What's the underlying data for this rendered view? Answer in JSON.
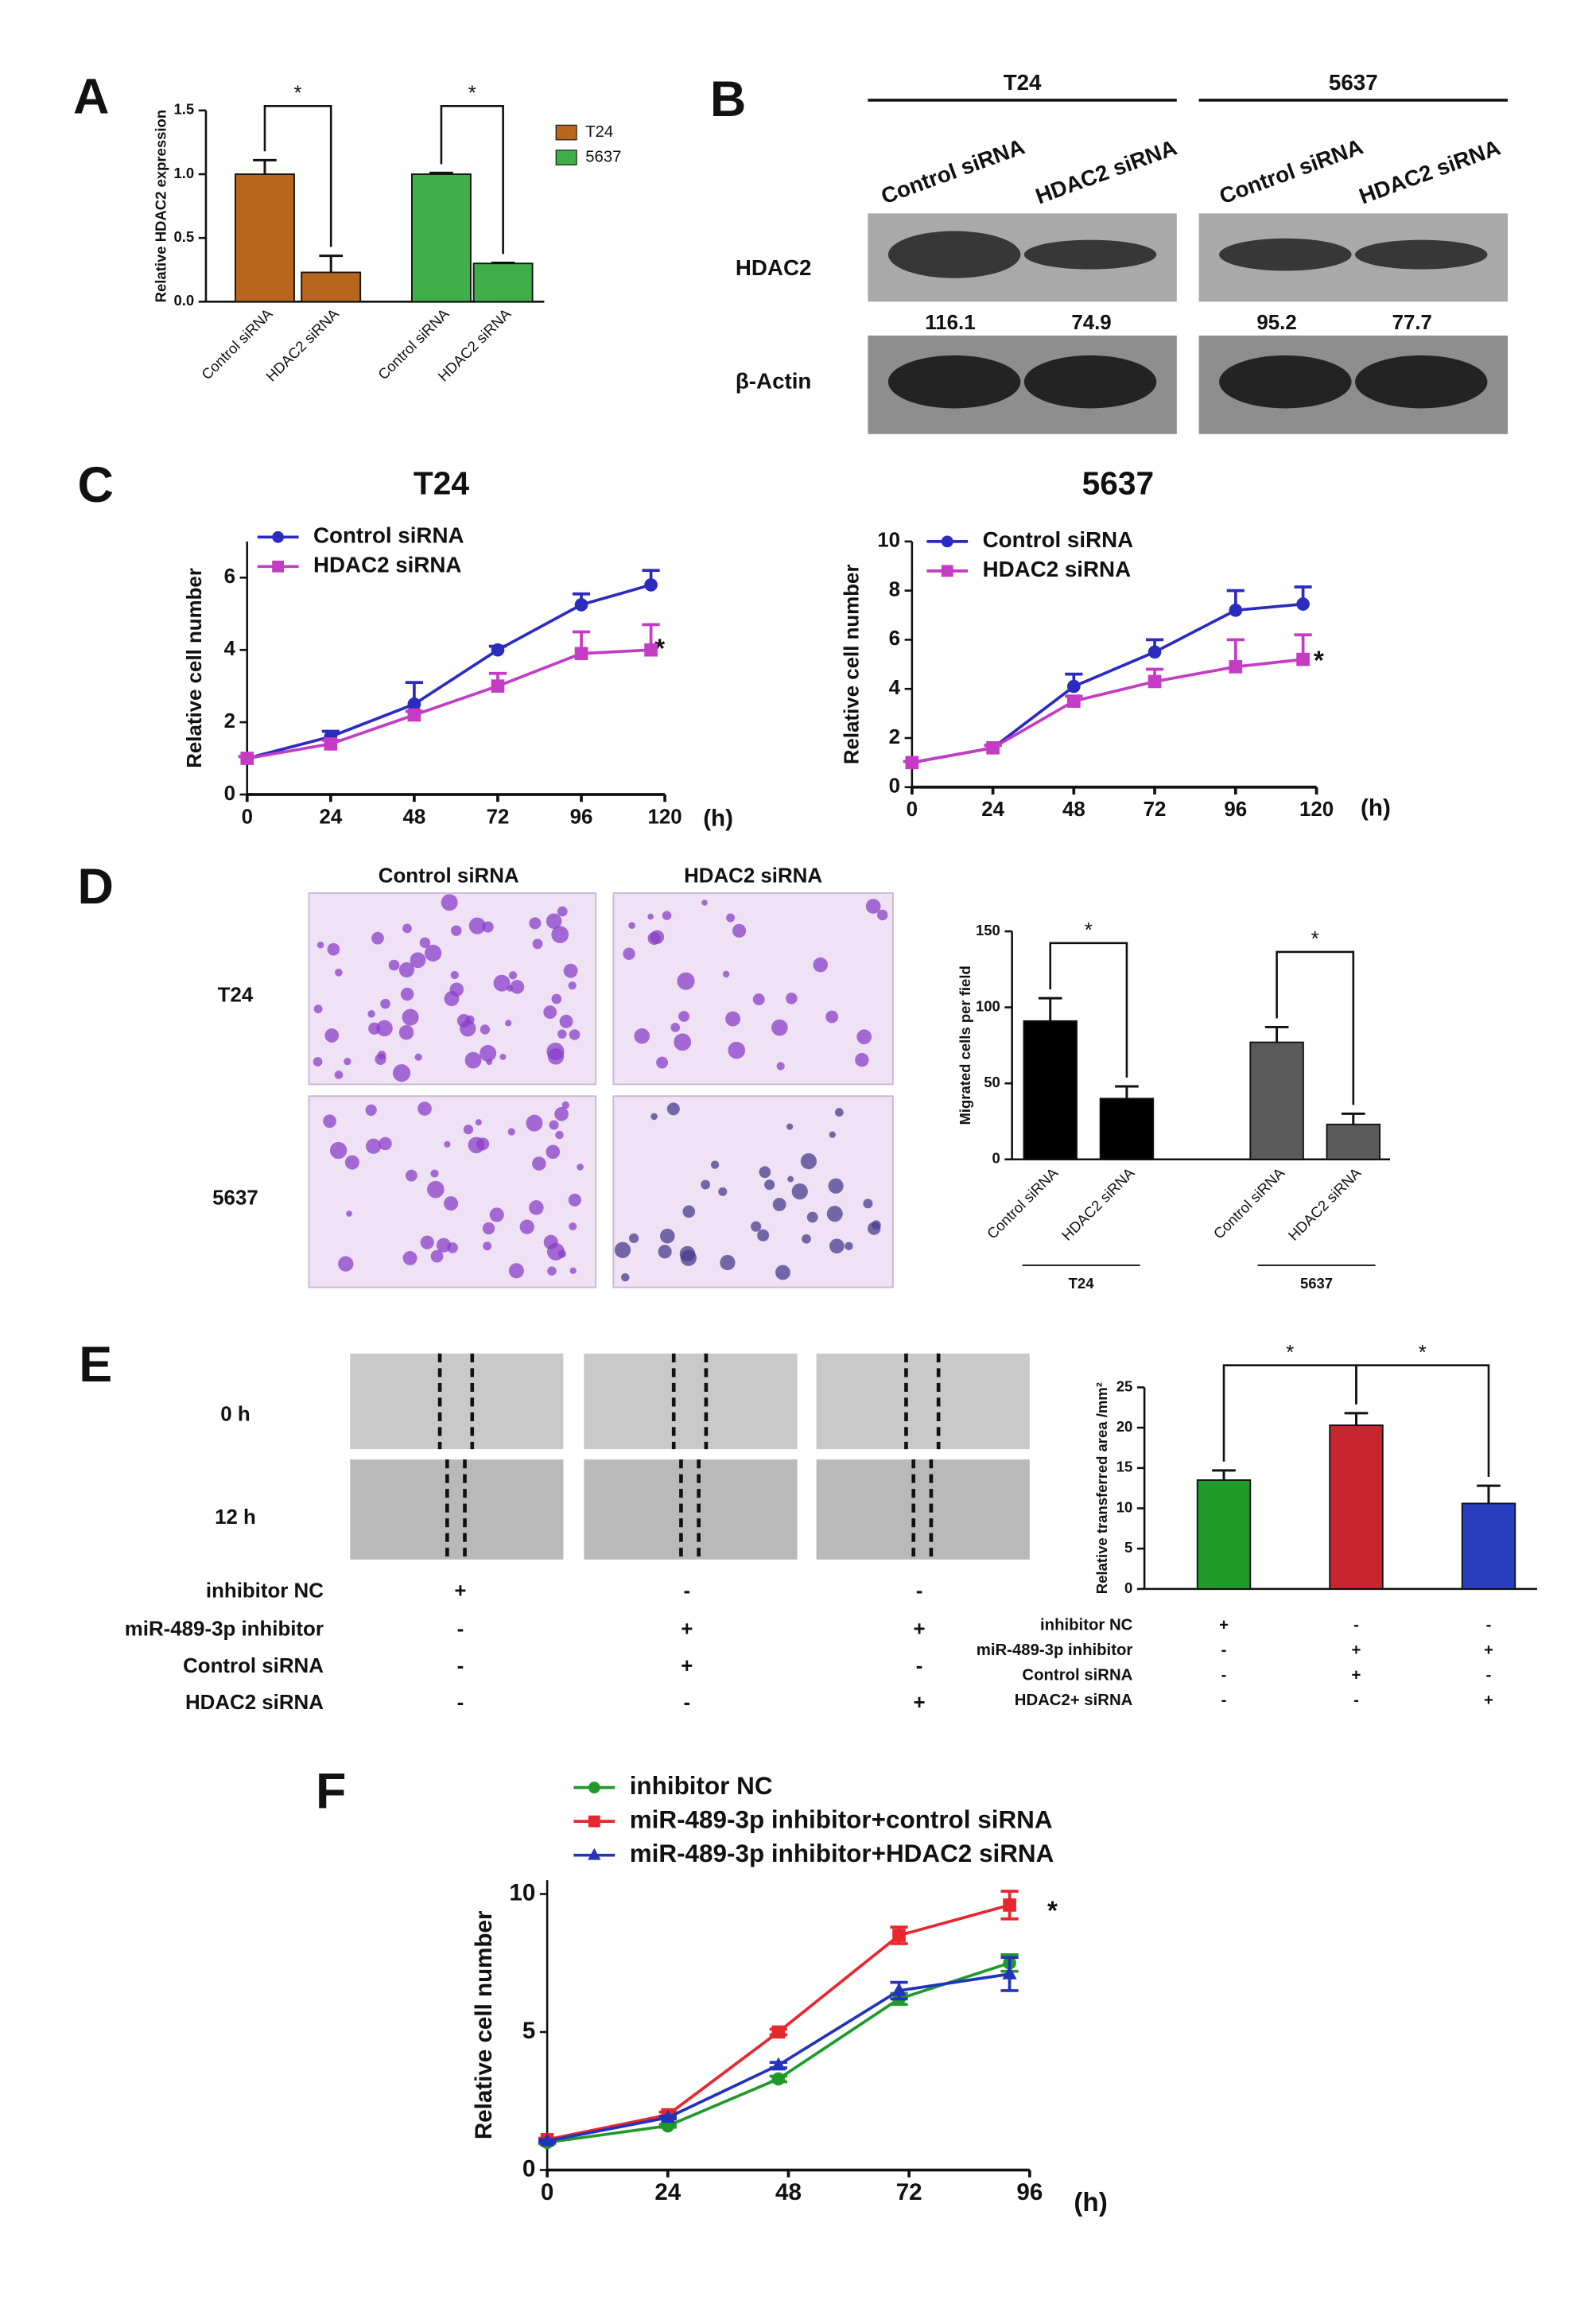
{
  "panel_labels": [
    "A",
    "B",
    "C",
    "D",
    "E",
    "F"
  ],
  "blot": {
    "groups": [
      "T24",
      "5637"
    ],
    "lanes": [
      "Control siRNA",
      "HDAC2 siRNA",
      "Control siRNA",
      "HDAC2 siRNA"
    ],
    "rows": [
      "HDAC2",
      "β-Actin"
    ],
    "quantification": [
      116.1,
      74.9,
      95.2,
      77.7
    ]
  },
  "migration_images": {
    "columns": [
      "Control siRNA",
      "HDAC2 siRNA"
    ],
    "rows": [
      "T24",
      "5637"
    ]
  },
  "wound_images": {
    "rows": [
      "0 h",
      "12 h"
    ],
    "conditions": {
      "labels": [
        "inhibitor NC",
        "miR-489-3p inhibitor",
        "Control siRNA",
        "HDAC2 siRNA"
      ],
      "signs": [
        [
          "+",
          "-",
          "-"
        ],
        [
          "-",
          "+",
          "+"
        ],
        [
          "-",
          "+",
          "-"
        ],
        [
          "-",
          "-",
          "+"
        ]
      ]
    }
  },
  "chart_data": [
    {
      "type": "bar",
      "y_label": "Relative HDAC2 expression",
      "categories": [
        "Control siRNA",
        "HDAC2 siRNA",
        "Control siRNA",
        "HDAC2 siRNA"
      ],
      "series": [
        {
          "name": "T24",
          "color": "#b8651e",
          "values": [
            1.0,
            0.23,
            null,
            null
          ],
          "errors": [
            0.11,
            0.13,
            null,
            null
          ]
        },
        {
          "name": "5637",
          "color": "#3fae49",
          "values": [
            null,
            null,
            1.0,
            0.3
          ],
          "errors": [
            null,
            null,
            0.01,
            0.005
          ]
        }
      ],
      "ylim": [
        0,
        1.5
      ],
      "yticks": [
        {
          "value": 0,
          "label": "0.0"
        },
        {
          "value": 0.5,
          "label": "0.5"
        },
        {
          "value": 1,
          "label": "1.0"
        },
        {
          "value": 1.5,
          "label": "1.5"
        }
      ],
      "annotations": [
        "*",
        "*"
      ],
      "legend": true
    },
    {
      "type": "line",
      "title": "T24",
      "y_label": "Relative cell number",
      "x_label": "(h)",
      "x": [
        0,
        24,
        48,
        72,
        96,
        116
      ],
      "series": [
        {
          "name": "Control siRNA",
          "color": "#2b2bbf",
          "marker": "circle",
          "values": [
            1,
            1.6,
            2.5,
            4.0,
            5.25,
            5.8
          ],
          "errors": [
            0.05,
            0.15,
            0.6,
            0.1,
            0.3,
            0.4
          ]
        },
        {
          "name": "HDAC2 siRNA",
          "color": "#c43cc4",
          "marker": "square",
          "values": [
            1,
            1.4,
            2.2,
            3.0,
            3.9,
            4.0
          ],
          "errors": [
            0.05,
            0.1,
            0.1,
            0.35,
            0.6,
            0.7
          ]
        }
      ],
      "xlim": [
        0,
        120
      ],
      "xticks": [
        0,
        24,
        48,
        72,
        96,
        120
      ],
      "ylim": [
        0,
        7
      ],
      "yticks": [
        0,
        2,
        4,
        6
      ],
      "annotations": [
        "*"
      ]
    },
    {
      "type": "line",
      "title": "5637",
      "y_label": "Relative cell number",
      "x_label": "(h)",
      "x": [
        0,
        24,
        48,
        72,
        96,
        116
      ],
      "series": [
        {
          "name": "Control siRNA",
          "color": "#2b2bbf",
          "marker": "circle",
          "values": [
            1,
            1.6,
            4.1,
            5.5,
            7.2,
            7.45
          ],
          "errors": [
            0.05,
            0.1,
            0.5,
            0.5,
            0.8,
            0.7
          ]
        },
        {
          "name": "HDAC2 siRNA",
          "color": "#c43cc4",
          "marker": "square",
          "values": [
            1,
            1.6,
            3.5,
            4.3,
            4.9,
            5.2
          ],
          "errors": [
            0.05,
            0.1,
            0.2,
            0.5,
            1.1,
            1.0
          ]
        }
      ],
      "xlim": [
        0,
        120
      ],
      "xticks": [
        0,
        24,
        48,
        72,
        96,
        120
      ],
      "ylim": [
        0,
        10
      ],
      "yticks": [
        0,
        2,
        4,
        6,
        8,
        10
      ],
      "annotations": [
        "*"
      ]
    },
    {
      "type": "bar",
      "y_label": "Migrated cells per field",
      "categories": [
        "Control siRNA",
        "HDAC2 siRNA",
        "Control siRNA",
        "HDAC2 siRNA"
      ],
      "series": [
        {
          "name": "T24",
          "color": "#000000",
          "values": [
            91,
            40,
            null,
            null
          ],
          "errors": [
            15,
            8,
            null,
            null
          ]
        },
        {
          "name": "5637",
          "color": "#5a5a5a",
          "values": [
            null,
            null,
            77,
            23
          ],
          "errors": [
            null,
            null,
            10,
            7
          ]
        }
      ],
      "ylim": [
        0,
        150
      ],
      "yticks": [
        0,
        50,
        100,
        150
      ],
      "annotations": [
        "*",
        "*"
      ],
      "legend": false
    },
    {
      "type": "bar",
      "y_label": "Relative transferred area /mm²",
      "values": [
        13.5,
        20.3,
        10.6
      ],
      "errors": [
        1.2,
        1.5,
        2.2
      ],
      "colors": [
        "#1f9a2a",
        "#c8262e",
        "#2a3fc0"
      ],
      "conditions": {
        "labels": [
          "inhibitor NC",
          "miR-489-3p inhibitor",
          "Control siRNA",
          "HDAC2+ siRNA"
        ],
        "signs": [
          [
            "+",
            "-",
            "-"
          ],
          [
            "-",
            "+",
            "+"
          ],
          [
            "-",
            "+",
            "-"
          ],
          [
            "-",
            "-",
            "+"
          ]
        ]
      },
      "ylim": [
        0,
        25
      ],
      "yticks": [
        0,
        5,
        10,
        15,
        20,
        25
      ],
      "annotations": [
        "*",
        "*"
      ]
    },
    {
      "type": "line",
      "y_label": "Relative cell number",
      "x_label": "(h)",
      "x": [
        0,
        24,
        46,
        70,
        92
      ],
      "series": [
        {
          "name": "inhibitor NC",
          "color": "#1f9a2a",
          "marker": "circle",
          "values": [
            1.0,
            1.6,
            3.3,
            6.2,
            7.5
          ],
          "errors": [
            0.05,
            0.05,
            0.1,
            0.2,
            0.3
          ]
        },
        {
          "name": "miR-489-3p inhibitor+control siRNA",
          "color": "#e8262e",
          "marker": "square",
          "values": [
            1.1,
            2.0,
            5.0,
            8.5,
            9.6
          ],
          "errors": [
            0.05,
            0.1,
            0.1,
            0.3,
            0.5
          ]
        },
        {
          "name": "miR-489-3p inhibitor+HDAC2 siRNA",
          "color": "#2233bb",
          "marker": "triangle",
          "values": [
            1.05,
            1.9,
            3.8,
            6.5,
            7.1
          ],
          "errors": [
            0.05,
            0.05,
            0.1,
            0.3,
            0.6
          ]
        }
      ],
      "xlim": [
        0,
        96
      ],
      "xticks": [
        0,
        24,
        48,
        72,
        96
      ],
      "ylim": [
        0,
        10.5
      ],
      "yticks": [
        0,
        5,
        10
      ],
      "annotations": [
        "*"
      ]
    }
  ]
}
